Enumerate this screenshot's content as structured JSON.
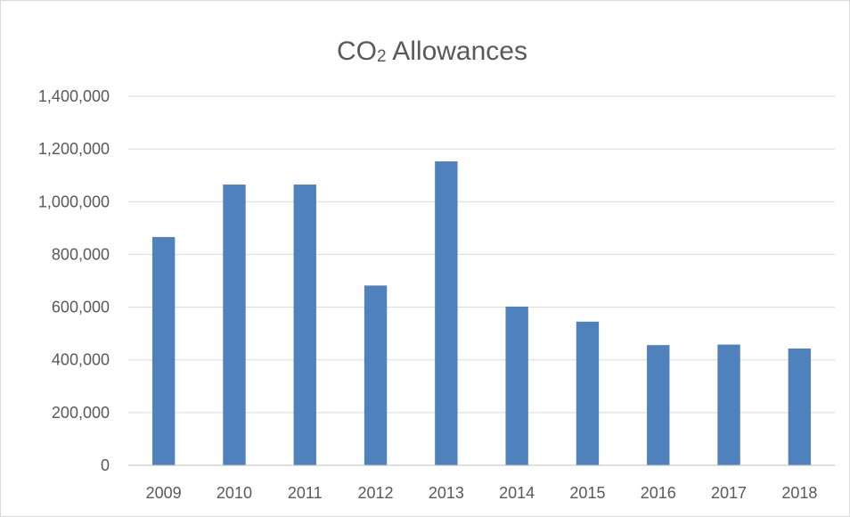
{
  "chart_data": {
    "type": "bar",
    "title": {
      "main": "CO",
      "subscript": "2",
      "rest": " Allowances"
    },
    "categories": [
      "2009",
      "2010",
      "2011",
      "2012",
      "2013",
      "2014",
      "2015",
      "2016",
      "2017",
      "2018"
    ],
    "series": [
      {
        "values": [
          866000,
          1065000,
          1065000,
          682000,
          1153000,
          602000,
          545000,
          456000,
          458000,
          443000
        ],
        "color": "#4f81bd"
      }
    ],
    "ylim": [
      0,
      1400000
    ],
    "y_ticks": [
      0,
      200000,
      400000,
      600000,
      800000,
      1000000,
      1200000,
      1400000
    ],
    "y_tick_labels": [
      "0",
      "200,000",
      "400,000",
      "600,000",
      "800,000",
      "1,000,000",
      "1,200,000",
      "1,400,000"
    ],
    "grid": true,
    "gridline_color": "#d9d9d9",
    "axis_color": "#bfbfbf",
    "text_color": "#595959",
    "legend": "none"
  }
}
